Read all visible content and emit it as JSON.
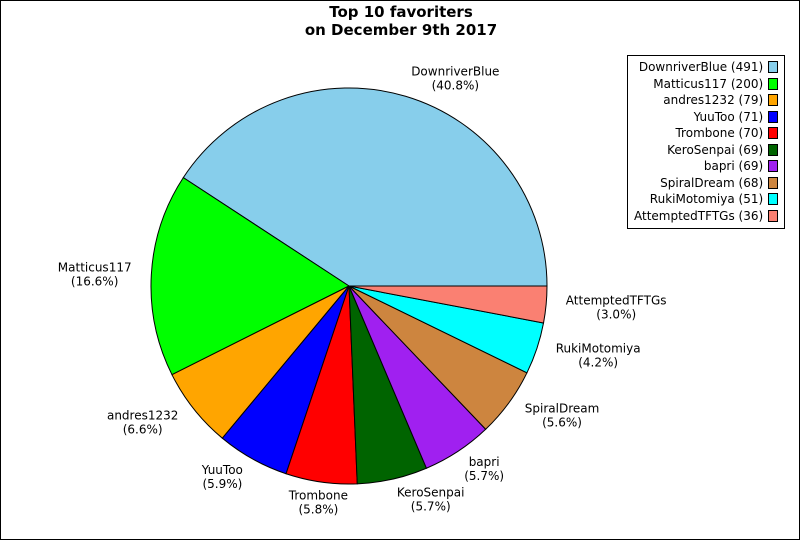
{
  "chart_data": {
    "type": "pie",
    "title_lines": [
      "Top 10 favoriters",
      "on December 9th 2017"
    ],
    "slices": [
      {
        "label": "DownriverBlue",
        "value": 491,
        "percent": "(40.8%)",
        "legend": "DownriverBlue (491)",
        "color": "#87ceeb"
      },
      {
        "label": "Matticus117",
        "value": 200,
        "percent": "(16.6%)",
        "legend": "Matticus117 (200)",
        "color": "#00ff00"
      },
      {
        "label": "andres1232",
        "value": 79,
        "percent": "(6.6%)",
        "legend": "andres1232 (79)",
        "color": "#ffa500"
      },
      {
        "label": "YuuToo",
        "value": 71,
        "percent": "(5.9%)",
        "legend": "YuuToo (71)",
        "color": "#0000ff"
      },
      {
        "label": "Trombone",
        "value": 70,
        "percent": "(5.8%)",
        "legend": "Trombone (70)",
        "color": "#ff0000"
      },
      {
        "label": "KeroSenpai",
        "value": 69,
        "percent": "(5.7%)",
        "legend": "KeroSenpai (69)",
        "color": "#006400"
      },
      {
        "label": "bapri",
        "value": 69,
        "percent": "(5.7%)",
        "legend": "bapri (69)",
        "color": "#a020f0"
      },
      {
        "label": "SpiralDream",
        "value": 68,
        "percent": "(5.6%)",
        "legend": "SpiralDream (68)",
        "color": "#cd853f"
      },
      {
        "label": "RukiMotomiya",
        "value": 51,
        "percent": "(4.2%)",
        "legend": "RukiMotomiya (51)",
        "color": "#00ffff"
      },
      {
        "label": "AttemptedTFTGs",
        "value": 36,
        "percent": "(3.0%)",
        "legend": "AttemptedTFTGs (36)",
        "color": "#fa8072"
      }
    ],
    "legend_position": "top-right"
  }
}
